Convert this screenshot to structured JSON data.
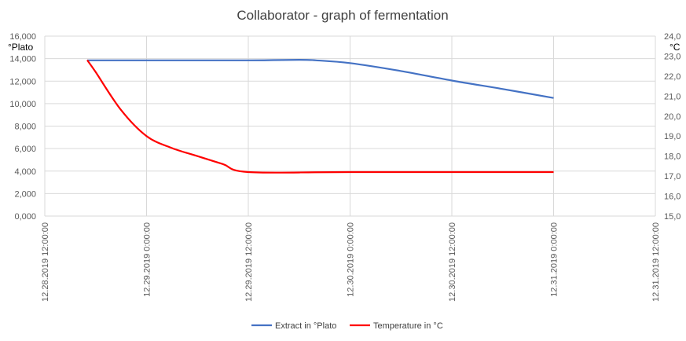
{
  "chart_data": {
    "type": "line",
    "title": "Collaborator - graph of fermentation",
    "grid": true,
    "legend_position": "bottom",
    "x_axis": {
      "min": "2019-12-28T12:00",
      "max": "2019-12-31T12:00",
      "tick_labels": [
        "12.28.2019 12:00:00",
        "12.29.2019 0:00:00",
        "12.29.2019 12:00:00",
        "12.30.2019 0:00:00",
        "12.30.2019 12:00:00",
        "12.31.2019 0:00:00",
        "12.31.2019 12:00:00"
      ]
    },
    "y_axis_left": {
      "label": "°Plato",
      "min": 0,
      "max": 16,
      "step": 2,
      "tick_labels": [
        "0,000",
        "2,000",
        "4,000",
        "6,000",
        "8,000",
        "10,000",
        "12,000",
        "14,000",
        "16,000"
      ]
    },
    "y_axis_right": {
      "label": "°C",
      "min": 15,
      "max": 24,
      "step": 1,
      "tick_labels": [
        "15,0",
        "16,0",
        "17,0",
        "18,0",
        "19,0",
        "20,0",
        "21,0",
        "22,0",
        "23,0",
        "24,0"
      ]
    },
    "series": [
      {
        "name": "Extract in °Plato",
        "axis": "left",
        "color": "#4472C4",
        "x": [
          "2019-12-28T17:00",
          "2019-12-29T00:00",
          "2019-12-29T12:00",
          "2019-12-29T18:00",
          "2019-12-29T20:00",
          "2019-12-30T00:00",
          "2019-12-30T06:00",
          "2019-12-30T12:00",
          "2019-12-30T18:00",
          "2019-12-31T00:00"
        ],
        "y": [
          13.85,
          13.85,
          13.85,
          13.9,
          13.85,
          13.6,
          12.9,
          12.05,
          11.3,
          10.5
        ]
      },
      {
        "name": "Temperature in °C",
        "axis": "right",
        "color": "#FF0000",
        "x": [
          "2019-12-28T17:00",
          "2019-12-28T18:00",
          "2019-12-28T21:00",
          "2019-12-29T00:00",
          "2019-12-29T03:00",
          "2019-12-29T06:00",
          "2019-12-29T09:00",
          "2019-12-29T12:00",
          "2019-12-30T00:00",
          "2019-12-31T00:00"
        ],
        "y": [
          22.8,
          22.2,
          20.3,
          19.0,
          18.4,
          18.0,
          17.6,
          17.2,
          17.2,
          17.2
        ]
      }
    ]
  }
}
